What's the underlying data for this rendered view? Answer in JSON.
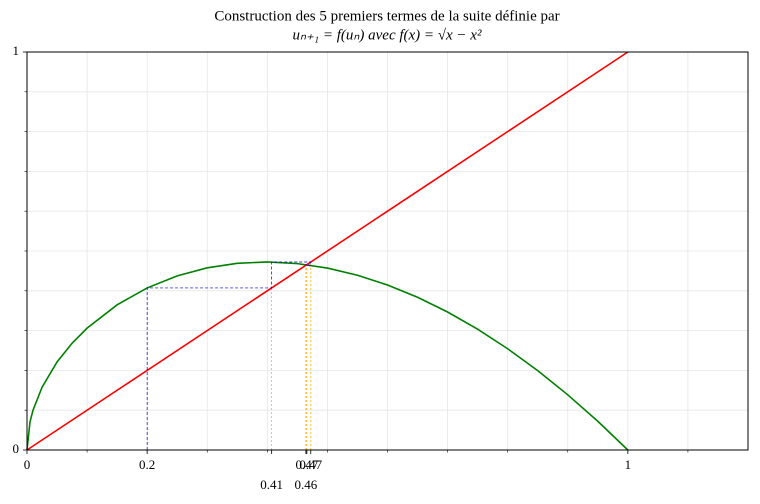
{
  "chart_data": {
    "type": "cobweb",
    "title": "Construction des 5 premiers termes de la suite définie par",
    "subtitle": "uₙ₊₁ = f(uₙ) avec f(x) = √x − x²",
    "xlim": [
      0,
      1.2
    ],
    "ylim": [
      0,
      1
    ],
    "xticks": [
      0,
      0.2,
      {
        "value": 0.4072,
        "label": "0.41"
      },
      {
        "value": 0.4723,
        "label": "0.47"
      },
      {
        "value": 0.4642,
        "label": "0.46"
      },
      {
        "value": 0.4658,
        "label": "0.47"
      },
      1
    ],
    "yticks": [
      0,
      1
    ],
    "xminorticks": [
      0.1,
      0.2,
      0.3,
      0.4,
      0.5,
      0.6,
      0.7,
      0.8,
      0.9,
      1,
      1.1
    ],
    "yminorticks": [
      0.1,
      0.2,
      0.3,
      0.4,
      0.5,
      0.6,
      0.7,
      0.8,
      0.9
    ],
    "grid": true,
    "series": [
      {
        "color": "#008000",
        "style": "solid",
        "x": [
          0,
          0.005,
          0.01,
          0.025,
          0.05,
          0.075,
          0.1,
          0.15,
          0.2,
          0.25,
          0.3,
          0.35,
          0.4,
          0.45,
          0.5,
          0.55,
          0.6,
          0.65,
          0.7,
          0.75,
          0.8,
          0.85,
          0.9,
          0.95,
          1
        ],
        "values": [
          0,
          0.0707,
          0.0999,
          0.1575,
          0.2211,
          0.2682,
          0.3062,
          0.3648,
          0.4072,
          0.4375,
          0.4577,
          0.4691,
          0.4725,
          0.4683,
          0.4571,
          0.4391,
          0.4146,
          0.3837,
          0.3467,
          0.3035,
          0.2544,
          0.1995,
          0.1387,
          0.0722,
          0
        ]
      },
      {
        "color": "#ff0000",
        "style": "solid",
        "x": [
          0,
          1
        ],
        "values": [
          0,
          1
        ]
      },
      {
        "color": "#0000cc",
        "style": "dashed",
        "x": [
          0.2,
          0.2,
          0.4072,
          0.4072,
          0.4723,
          0.4723,
          0.4642,
          0.4642,
          0.4658
        ],
        "values": [
          0,
          0.4072,
          0.4072,
          0.4723,
          0.4723,
          0.4642,
          0.4642,
          0.4658,
          0.4658
        ]
      }
    ],
    "terms": [
      0.4072,
      0.4723,
      0.4642,
      0.4658
    ],
    "terms_color": "#ffa500"
  }
}
